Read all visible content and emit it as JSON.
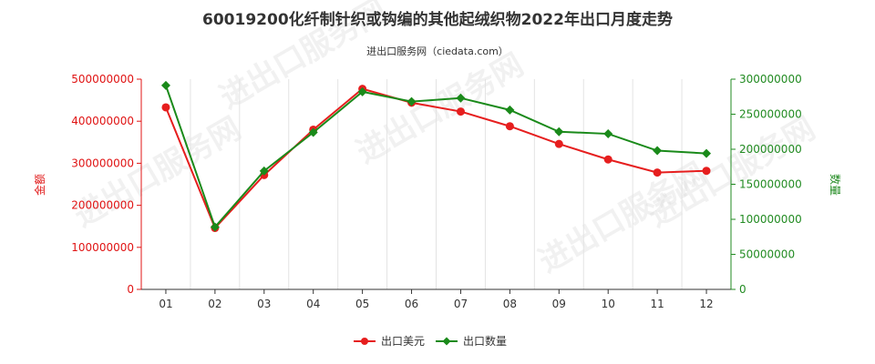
{
  "chart_data": {
    "type": "line",
    "title": "60019200化纤制针织或钩编的其他起绒织物2022年出口月度走势",
    "subtitle": "进出口服务网（ciedata.com）",
    "categories": [
      "01",
      "02",
      "03",
      "04",
      "05",
      "06",
      "07",
      "08",
      "09",
      "10",
      "11",
      "12"
    ],
    "y_left": {
      "label": "金额",
      "range": [
        0,
        500000000
      ],
      "ticks": [
        "0",
        "100000000",
        "200000000",
        "300000000",
        "400000000",
        "500000000"
      ],
      "color": "#e01414"
    },
    "y_right": {
      "label": "数量",
      "range": [
        0,
        300000000
      ],
      "ticks": [
        "0",
        "50000000",
        "100000000",
        "150000000",
        "200000000",
        "250000000",
        "300000000"
      ],
      "color": "#228b22"
    },
    "series": [
      {
        "name": "出口美元",
        "axis": "left",
        "color": "#e61e1e",
        "values": [
          433000000,
          146000000,
          272000000,
          380000000,
          477000000,
          444000000,
          423000000,
          388000000,
          346000000,
          309000000,
          278000000,
          282000000
        ]
      },
      {
        "name": "出口数量",
        "axis": "right",
        "color": "#1a8a1a",
        "values": [
          291000000,
          89000000,
          169000000,
          224000000,
          282000000,
          268000000,
          273000000,
          256000000,
          225000000,
          222000000,
          198000000,
          194000000
        ]
      }
    ],
    "grid": "vertical",
    "legend_position": "bottom-center"
  },
  "watermark": "进出口服务网"
}
